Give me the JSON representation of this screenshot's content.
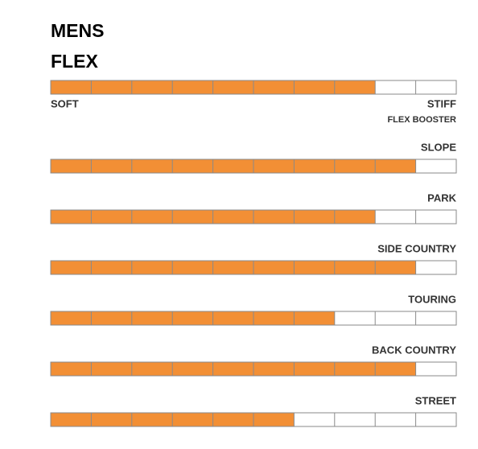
{
  "header": {
    "title": "MENS",
    "subtitle": "FLEX"
  },
  "segments": 10,
  "flex": {
    "value": 8,
    "min_label": "SOFT",
    "max_label": "STIFF"
  },
  "booster": {
    "title": "FLEX BOOSTER",
    "ratings": [
      {
        "label": "SLOPE",
        "value": 9
      },
      {
        "label": "PARK",
        "value": 8
      },
      {
        "label": "SIDE COUNTRY",
        "value": 9
      },
      {
        "label": "TOURING",
        "value": 7
      },
      {
        "label": "BACK COUNTRY",
        "value": 9
      },
      {
        "label": "STREET",
        "value": 6
      }
    ]
  }
}
